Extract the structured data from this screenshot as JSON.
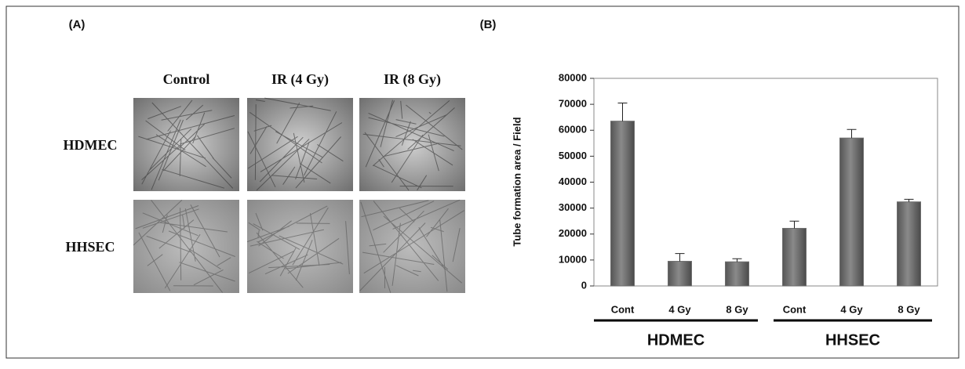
{
  "panel_a": {
    "label": "(A)",
    "columns": [
      "Control",
      "IR (4 Gy)",
      "IR (8 Gy)"
    ],
    "rows": [
      "HDMEC",
      "HHSEC"
    ]
  },
  "chart_data": {
    "type": "bar",
    "panel_label": "(B)",
    "y_label": "Tube formation area / Field",
    "categories": [
      "Cont",
      "4 Gy",
      "8 Gy",
      "Cont",
      "4 Gy",
      "8 Gy"
    ],
    "groups": [
      "HDMEC",
      "HHSEC"
    ],
    "values": [
      63500,
      9500,
      9300,
      22200,
      57000,
      32400
    ],
    "errors": [
      7000,
      3000,
      1200,
      2800,
      3300,
      1000
    ],
    "color": "#6e6e6e",
    "ylim": [
      0,
      80000
    ],
    "yticks": [
      0,
      10000,
      20000,
      30000,
      40000,
      50000,
      60000,
      70000,
      80000
    ]
  }
}
